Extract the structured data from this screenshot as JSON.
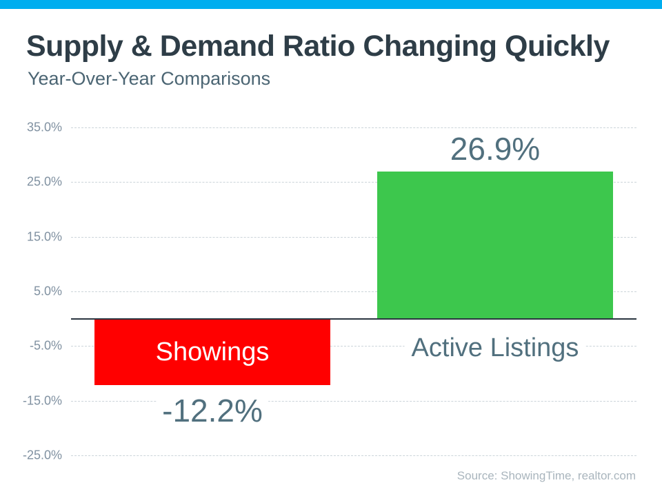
{
  "page": {
    "title": "Supply & Demand Ratio Changing Quickly",
    "subtitle": "Year-Over-Year Comparisons",
    "source": "Source: ShowingTime, realtor.com"
  },
  "colors": {
    "accent_bar": "#00AEEF",
    "title": "#2E3D47",
    "subtitle": "#4B6573",
    "axis_line": "#2A3540",
    "gridline": "#CBD4D9",
    "tick_label": "#8091A1",
    "value_label": "#51707E",
    "category_label": "#51707E",
    "bar_inner_label": "#FFFFFF",
    "source": "#A9B5BD"
  },
  "chart_data": {
    "type": "bar",
    "title": "Supply & Demand Ratio Changing Quickly",
    "subtitle": "Year-Over-Year Comparisons",
    "categories": [
      "Showings",
      "Active Listings"
    ],
    "values": [
      -12.2,
      26.9
    ],
    "value_labels": [
      "-12.2%",
      "26.9%"
    ],
    "bar_colors": [
      "#FF0000",
      "#3DC74D"
    ],
    "xlabel": "",
    "ylabel": "",
    "ylim": [
      -25,
      35
    ],
    "yticks": [
      {
        "value": 35,
        "label": "35.0%"
      },
      {
        "value": 25,
        "label": "25.0%"
      },
      {
        "value": 15,
        "label": "15.0%"
      },
      {
        "value": 5,
        "label": "5.0%"
      },
      {
        "value": -5,
        "label": "-5.0%"
      },
      {
        "value": -15,
        "label": "-15.0%"
      },
      {
        "value": -25,
        "label": "-25.0%"
      }
    ],
    "grid": "horizontal-dashed",
    "legend": "none",
    "annotations": [
      "zero-axis-line-bold"
    ]
  }
}
